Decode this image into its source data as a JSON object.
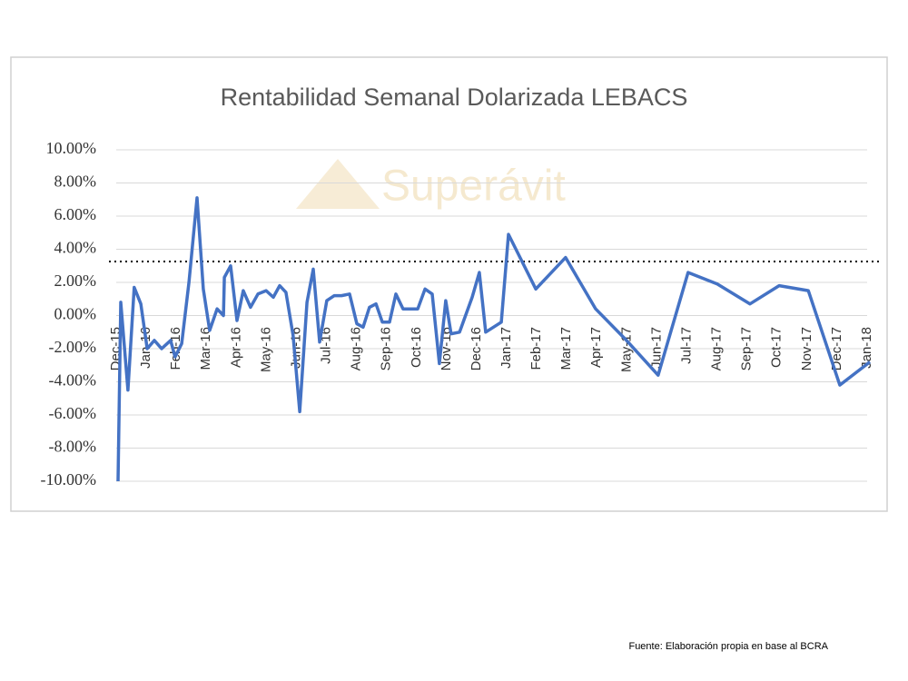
{
  "chart_data": {
    "type": "line",
    "title": "Rentabilidad Semanal Dolarizada LEBACS",
    "watermark": "Superávit",
    "source": "Fuente: Elaboración propia en base al BCRA",
    "x": [
      0.06,
      0.15,
      0.39,
      0.6,
      0.82,
      1.03,
      1.27,
      1.51,
      1.81,
      1.96,
      2.18,
      2.42,
      2.69,
      2.9,
      3.11,
      3.36,
      3.57,
      3.6,
      3.81,
      4.02,
      4.23,
      4.47,
      4.72,
      4.99,
      5.23,
      5.44,
      5.65,
      5.89,
      6.11,
      6.35,
      6.56,
      6.77,
      7.01,
      7.26,
      7.5,
      7.77,
      8.01,
      8.22,
      8.43,
      8.65,
      8.86,
      9.1,
      9.31,
      9.55,
      9.79,
      10.04,
      10.28,
      10.52,
      10.76,
      10.97,
      11.15,
      11.43,
      11.85,
      12.09,
      12.3,
      12.82,
      13.06,
      13.97,
      14.96,
      15.96,
      16.99,
      18.04,
      19.04,
      20.01,
      21.1,
      22.07,
      23.04,
      24.09,
      25.09
    ],
    "series": [
      {
        "name": "LEBACS",
        "color": "#4472c4",
        "values": [
          -10,
          0.8,
          -4.5,
          1.7,
          0.7,
          -2.0,
          -1.5,
          -2.0,
          -1.5,
          -2.5,
          -1.7,
          2.0,
          7.1,
          1.6,
          -0.9,
          0.4,
          0.0,
          2.3,
          3.0,
          -0.3,
          1.5,
          0.5,
          1.3,
          1.5,
          1.1,
          1.8,
          1.4,
          -1.2,
          -5.8,
          0.8,
          2.8,
          -1.6,
          0.9,
          1.2,
          1.2,
          1.3,
          -0.5,
          -0.7,
          0.5,
          0.7,
          -0.4,
          -0.4,
          1.3,
          0.4,
          0.4,
          0.4,
          1.6,
          1.3,
          -2.9,
          0.9,
          -1.1,
          -1.0,
          1.1,
          2.6,
          -1.0,
          -0.4,
          4.9,
          1.6,
          3.5,
          0.4,
          -1.5,
          -3.6,
          2.6,
          1.9,
          0.7,
          1.8,
          1.5,
          -4.2,
          -2.8
        ]
      }
    ],
    "threshold": 3.26,
    "xlim": [
      0,
      25.5
    ],
    "xticks": [
      {
        "value": 0,
        "label": "Dec-15"
      },
      {
        "value": 1,
        "label": "Jan-16"
      },
      {
        "value": 2,
        "label": "Feb-16"
      },
      {
        "value": 3,
        "label": "Mar-16"
      },
      {
        "value": 4,
        "label": "Apr-16"
      },
      {
        "value": 5,
        "label": "May-16"
      },
      {
        "value": 6,
        "label": "Jun-16"
      },
      {
        "value": 7,
        "label": "Jul-16"
      },
      {
        "value": 8,
        "label": "Aug-16"
      },
      {
        "value": 9,
        "label": "Sep-16"
      },
      {
        "value": 10,
        "label": "Oct-16"
      },
      {
        "value": 11,
        "label": "Nov-16"
      },
      {
        "value": 12,
        "label": "Dec-16"
      },
      {
        "value": 13,
        "label": "Jan-17"
      },
      {
        "value": 14,
        "label": "Feb-17"
      },
      {
        "value": 15,
        "label": "Mar-17"
      },
      {
        "value": 16,
        "label": "Apr-17"
      },
      {
        "value": 17,
        "label": "May-17"
      },
      {
        "value": 18,
        "label": "Jun-17"
      },
      {
        "value": 19,
        "label": "Jul-17"
      },
      {
        "value": 20,
        "label": "Aug-17"
      },
      {
        "value": 21,
        "label": "Sep-17"
      },
      {
        "value": 22,
        "label": "Oct-17"
      },
      {
        "value": 23,
        "label": "Nov-17"
      },
      {
        "value": 24,
        "label": "Dec-17"
      },
      {
        "value": 25,
        "label": "Jan-18"
      }
    ],
    "ylim": [
      -10,
      10
    ],
    "yticks": [
      {
        "value": -10,
        "label": "-10.00%"
      },
      {
        "value": -8,
        "label": "-8.00%"
      },
      {
        "value": -6,
        "label": "-6.00%"
      },
      {
        "value": -4,
        "label": "-4.00%"
      },
      {
        "value": -2,
        "label": "-2.00%"
      },
      {
        "value": 0,
        "label": "0.00%"
      },
      {
        "value": 2,
        "label": "2.00%"
      },
      {
        "value": 4,
        "label": "4.00%"
      },
      {
        "value": 6,
        "label": "6.00%"
      },
      {
        "value": 8,
        "label": "8.00%"
      },
      {
        "value": 10,
        "label": "10.00%"
      }
    ],
    "grid": true
  }
}
